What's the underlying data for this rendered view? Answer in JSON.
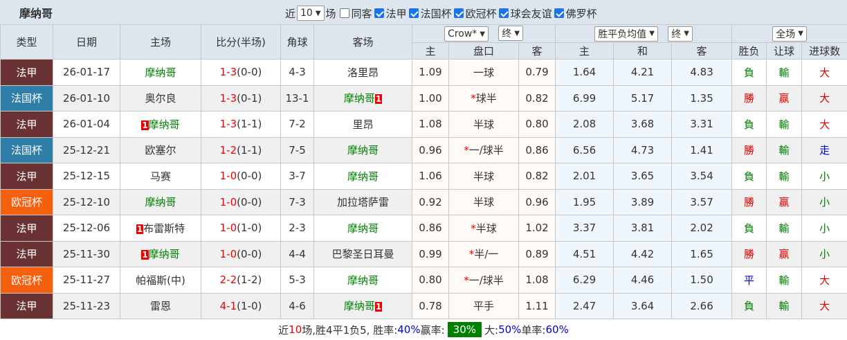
{
  "header": {
    "title": "摩纳哥",
    "recent_prefix": "近",
    "recent_count": "10",
    "recent_suffix": "场",
    "filters": [
      {
        "label": "同客",
        "checked": false
      },
      {
        "label": "法甲",
        "checked": true
      },
      {
        "label": "法国杯",
        "checked": true
      },
      {
        "label": "欧冠杯",
        "checked": true
      },
      {
        "label": "球会友谊",
        "checked": true
      },
      {
        "label": "佛罗杯",
        "checked": true
      }
    ]
  },
  "columns": {
    "type": "类型",
    "date": "日期",
    "home": "主场",
    "score": "比分(半场)",
    "corner": "角球",
    "away": "客场",
    "company": "Crow*",
    "company_stage": "终",
    "avg": "胜平负均值",
    "avg_stage": "终",
    "period": "全场",
    "sub": [
      "主",
      "盘口",
      "客",
      "主",
      "和",
      "客",
      "胜负",
      "让球",
      "进球数"
    ]
  },
  "type_colors": {
    "法甲": "#6a3232",
    "法国杯": "#2e7ea8",
    "欧冠杯": "#f5600f"
  },
  "result_colors": {
    "負": "#008000",
    "勝": "#e00000",
    "平": "#0000cc",
    "輸": "#008000",
    "赢": "#e00000",
    "大": "#e00000",
    "小": "#008000",
    "走": "#0000cc"
  },
  "rows": [
    {
      "type": "法甲",
      "date": "26-01-17",
      "home": "摩纳哥",
      "home_green": true,
      "home_badge": "",
      "away": "洛里昂",
      "away_green": false,
      "away_badge": "",
      "score": "1-3",
      "half": "(0-0)",
      "corner": "4-3",
      "h": "1.09",
      "star": false,
      "line": "一球",
      "a": "0.79",
      "w": "1.64",
      "d": "4.21",
      "l": "4.83",
      "r1": "負",
      "r2": "輸",
      "r3": "大"
    },
    {
      "type": "法国杯",
      "date": "26-01-10",
      "home": "奥尔良",
      "home_green": false,
      "home_badge": "",
      "away": "摩纳哥",
      "away_green": true,
      "away_badge": "1",
      "score": "1-3",
      "half": "(0-1)",
      "corner": "13-1",
      "h": "1.00",
      "star": true,
      "line": "球半",
      "a": "0.82",
      "w": "6.99",
      "d": "5.17",
      "l": "1.35",
      "r1": "勝",
      "r2": "赢",
      "r3": "大"
    },
    {
      "type": "法甲",
      "date": "26-01-04",
      "home": "摩纳哥",
      "home_green": true,
      "home_badge": "1",
      "away": "里昂",
      "away_green": false,
      "away_badge": "",
      "score": "1-3",
      "half": "(1-1)",
      "corner": "7-2",
      "h": "1.08",
      "star": false,
      "line": "半球",
      "a": "0.80",
      "w": "2.08",
      "d": "3.68",
      "l": "3.31",
      "r1": "負",
      "r2": "輸",
      "r3": "大"
    },
    {
      "type": "法国杯",
      "date": "25-12-21",
      "home": "欧塞尔",
      "home_green": false,
      "home_badge": "",
      "away": "摩纳哥",
      "away_green": true,
      "away_badge": "",
      "score": "1-2",
      "half": "(1-1)",
      "corner": "7-5",
      "h": "0.96",
      "star": true,
      "line": "一/球半",
      "a": "0.86",
      "w": "6.56",
      "d": "4.73",
      "l": "1.41",
      "r1": "勝",
      "r2": "輸",
      "r3": "走"
    },
    {
      "type": "法甲",
      "date": "25-12-15",
      "home": "马赛",
      "home_green": false,
      "home_badge": "",
      "away": "摩纳哥",
      "away_green": true,
      "away_badge": "",
      "score": "1-0",
      "half": "(0-0)",
      "corner": "3-7",
      "h": "1.06",
      "star": false,
      "line": "半球",
      "a": "0.82",
      "w": "2.01",
      "d": "3.65",
      "l": "3.54",
      "r1": "負",
      "r2": "輸",
      "r3": "小"
    },
    {
      "type": "欧冠杯",
      "date": "25-12-10",
      "home": "摩纳哥",
      "home_green": true,
      "home_badge": "",
      "away": "加拉塔萨雷",
      "away_green": false,
      "away_badge": "",
      "score": "1-0",
      "half": "(0-0)",
      "corner": "7-3",
      "h": "0.92",
      "star": false,
      "line": "半球",
      "a": "0.96",
      "w": "1.95",
      "d": "3.89",
      "l": "3.57",
      "r1": "勝",
      "r2": "赢",
      "r3": "小"
    },
    {
      "type": "法甲",
      "date": "25-12-06",
      "home": "布雷斯特",
      "home_green": false,
      "home_badge": "1",
      "away": "摩纳哥",
      "away_green": true,
      "away_badge": "",
      "score": "1-0",
      "half": "(1-0)",
      "corner": "2-3",
      "h": "0.86",
      "star": true,
      "line": "半球",
      "a": "1.02",
      "w": "3.37",
      "d": "3.81",
      "l": "2.02",
      "r1": "負",
      "r2": "輸",
      "r3": "小"
    },
    {
      "type": "法甲",
      "date": "25-11-30",
      "home": "摩纳哥",
      "home_green": true,
      "home_badge": "1",
      "away": "巴黎圣日耳曼",
      "away_green": false,
      "away_badge": "",
      "score": "1-0",
      "half": "(0-0)",
      "corner": "4-4",
      "h": "0.99",
      "star": true,
      "line": "半/一",
      "a": "0.89",
      "w": "4.51",
      "d": "4.42",
      "l": "1.65",
      "r1": "勝",
      "r2": "赢",
      "r3": "小"
    },
    {
      "type": "欧冠杯",
      "date": "25-11-27",
      "home": "帕福斯(中)",
      "home_green": false,
      "home_badge": "",
      "away": "摩纳哥",
      "away_green": true,
      "away_badge": "",
      "score": "2-2",
      "half": "(1-2)",
      "corner": "5-3",
      "h": "0.80",
      "star": true,
      "line": "一/球半",
      "a": "1.08",
      "w": "6.29",
      "d": "4.46",
      "l": "1.50",
      "r1": "平",
      "r2": "輸",
      "r3": "大"
    },
    {
      "type": "法甲",
      "date": "25-11-23",
      "home": "雷恩",
      "home_green": false,
      "home_badge": "",
      "away": "摩纳哥",
      "away_green": true,
      "away_badge": "1",
      "score": "4-1",
      "half": "(1-0)",
      "corner": "4-6",
      "h": "0.78",
      "star": false,
      "line": "平手",
      "a": "1.11",
      "w": "2.47",
      "d": "3.64",
      "l": "2.66",
      "r1": "負",
      "r2": "輸",
      "r3": "大"
    }
  ],
  "summary": {
    "p1": "近",
    "count": "10",
    "p2": "场,胜4平1负5, 胜率:",
    "win_rate": "40%",
    "p3": " 赢率:",
    "cover_rate": "30%",
    "p4": "大:",
    "over_rate": "50%",
    "p5": " 单率:",
    "odd_rate": "60%"
  }
}
